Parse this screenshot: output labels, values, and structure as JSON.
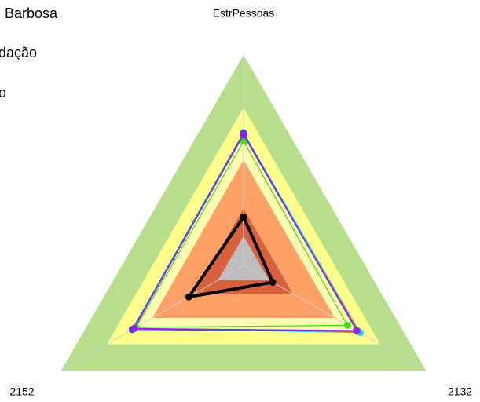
{
  "chart_data": {
    "type": "radar",
    "annotations": [
      "Barbosa",
      "dação",
      "o"
    ],
    "categories": [
      "EstrPessoas",
      "2132",
      "2152"
    ],
    "rlim": [
      0,
      100
    ],
    "bands": [
      {
        "value": 100,
        "color": "#b7de8a"
      },
      {
        "value": 75,
        "color": "#ffff8c"
      },
      {
        "value": 63,
        "color": "#ffffb4"
      },
      {
        "value": 50,
        "color": "#ffa066"
      },
      {
        "value": 27,
        "color": "#d8603c"
      },
      {
        "value": 14,
        "color": "#bdbdbd"
      }
    ],
    "series": [
      {
        "color": "#e02020",
        "values": [
          62,
          63,
          61
        ]
      },
      {
        "color": "#30d0f0",
        "values": [
          63,
          64,
          60
        ]
      },
      {
        "color": "#3050e0",
        "values": [
          63,
          62,
          61
        ]
      },
      {
        "color": "#40e010",
        "values": [
          59,
          57,
          59
        ]
      },
      {
        "color": "#9020f0",
        "values": [
          62,
          62,
          60
        ]
      },
      {
        "color": "#000000",
        "values": [
          23,
          16,
          30
        ]
      }
    ]
  }
}
